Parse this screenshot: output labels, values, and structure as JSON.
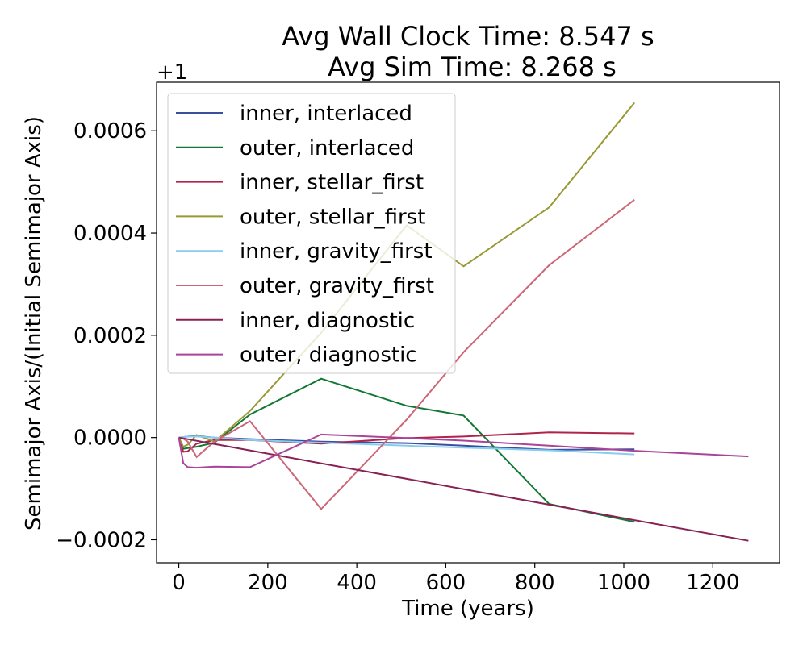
{
  "chart_data": {
    "type": "line",
    "title_line1": "Avg Wall Clock Time: 8.547 s",
    "title_line2": "Avg Sim Time: 8.268 s",
    "xlabel": "Time (years)",
    "ylabel": "Semimajor Axis/(Initial Semimajor Axis)",
    "offset_label": "+1",
    "xlim": [
      -50,
      1350
    ],
    "ylim": [
      -0.000245,
      0.000695
    ],
    "xticks": [
      0,
      200,
      400,
      600,
      800,
      1000,
      1200
    ],
    "xtick_labels": [
      "0",
      "200",
      "400",
      "600",
      "800",
      "1000",
      "1200"
    ],
    "yticks": [
      -0.0002,
      0.0,
      0.0002,
      0.0004,
      0.0006
    ],
    "ytick_labels": [
      "−0.0002",
      "0.0000",
      "0.0002",
      "0.0004",
      "0.0006"
    ],
    "grid": false,
    "legend_position": "upper-left",
    "series": [
      {
        "name": "inner, interlaced",
        "color": "#3a4fa0",
        "points": [
          [
            0,
            0.0
          ],
          [
            20,
            2e-06
          ],
          [
            40,
            3e-06
          ],
          [
            80,
            0.0
          ],
          [
            160,
            -3e-06
          ],
          [
            320,
            -8e-06
          ],
          [
            512,
            -1.1e-05
          ],
          [
            640,
            -1.6e-05
          ],
          [
            832,
            -2.4e-05
          ],
          [
            1024,
            -2.3e-05
          ]
        ]
      },
      {
        "name": "outer, interlaced",
        "color": "#117733",
        "points": [
          [
            0,
            0.0
          ],
          [
            10,
            -2.2e-05
          ],
          [
            40,
            -1.8e-05
          ],
          [
            80,
            -1e-05
          ],
          [
            160,
            4.5e-05
          ],
          [
            320,
            0.000115
          ],
          [
            512,
            6.2e-05
          ],
          [
            640,
            4.3e-05
          ],
          [
            832,
            -0.00013
          ],
          [
            1024,
            -0.000165
          ]
        ]
      },
      {
        "name": "inner, stellar_first",
        "color": "#b0244b",
        "points": [
          [
            0,
            0.0
          ],
          [
            10,
            -2.8e-05
          ],
          [
            20,
            -2.7e-05
          ],
          [
            40,
            -1.2e-05
          ],
          [
            80,
            -5e-06
          ],
          [
            160,
            -5e-06
          ],
          [
            320,
            -1.2e-05
          ],
          [
            512,
            -1e-06
          ],
          [
            640,
            2e-06
          ],
          [
            832,
            1e-05
          ],
          [
            1024,
            8e-06
          ]
        ]
      },
      {
        "name": "outer, stellar_first",
        "color": "#999933",
        "points": [
          [
            0,
            0.0
          ],
          [
            10,
            -1.8e-05
          ],
          [
            20,
            -1.4e-05
          ],
          [
            40,
            5e-06
          ],
          [
            80,
            -8e-06
          ],
          [
            160,
            5.2e-05
          ],
          [
            320,
            0.000205
          ],
          [
            512,
            0.000415
          ],
          [
            640,
            0.000335
          ],
          [
            832,
            0.00045
          ],
          [
            1024,
            0.000655
          ]
        ]
      },
      {
        "name": "inner, gravity_first",
        "color": "#88ccee",
        "points": [
          [
            0,
            0.0
          ],
          [
            20,
            2e-06
          ],
          [
            40,
            2e-06
          ],
          [
            80,
            0.0
          ],
          [
            160,
            -5e-06
          ],
          [
            320,
            -1e-05
          ],
          [
            512,
            -1.6e-05
          ],
          [
            640,
            -2e-05
          ],
          [
            832,
            -2.5e-05
          ],
          [
            1024,
            -3.3e-05
          ]
        ]
      },
      {
        "name": "outer, gravity_first",
        "color": "#cc6677",
        "points": [
          [
            0,
            0.0
          ],
          [
            10,
            -2e-06
          ],
          [
            20,
            -8e-06
          ],
          [
            40,
            -3.8e-05
          ],
          [
            80,
            -8e-06
          ],
          [
            160,
            3.2e-05
          ],
          [
            320,
            -0.00014
          ],
          [
            512,
            3.5e-05
          ],
          [
            640,
            0.000167
          ],
          [
            832,
            0.000337
          ],
          [
            1024,
            0.000465
          ]
        ]
      },
      {
        "name": "inner, diagnostic",
        "color": "#882255",
        "points": [
          [
            0,
            0.0
          ],
          [
            1280,
            -0.000202
          ]
        ]
      },
      {
        "name": "outer, diagnostic",
        "color": "#aa4499",
        "points": [
          [
            0,
            0.0
          ],
          [
            10,
            -5e-05
          ],
          [
            20,
            -5.8e-05
          ],
          [
            40,
            -5.9e-05
          ],
          [
            80,
            -5.7e-05
          ],
          [
            160,
            -5.8e-05
          ],
          [
            320,
            6e-06
          ],
          [
            512,
            -1e-06
          ],
          [
            640,
            -6e-06
          ],
          [
            832,
            -1.6e-05
          ],
          [
            1024,
            -2.6e-05
          ],
          [
            1280,
            -3.7e-05
          ]
        ]
      }
    ]
  }
}
